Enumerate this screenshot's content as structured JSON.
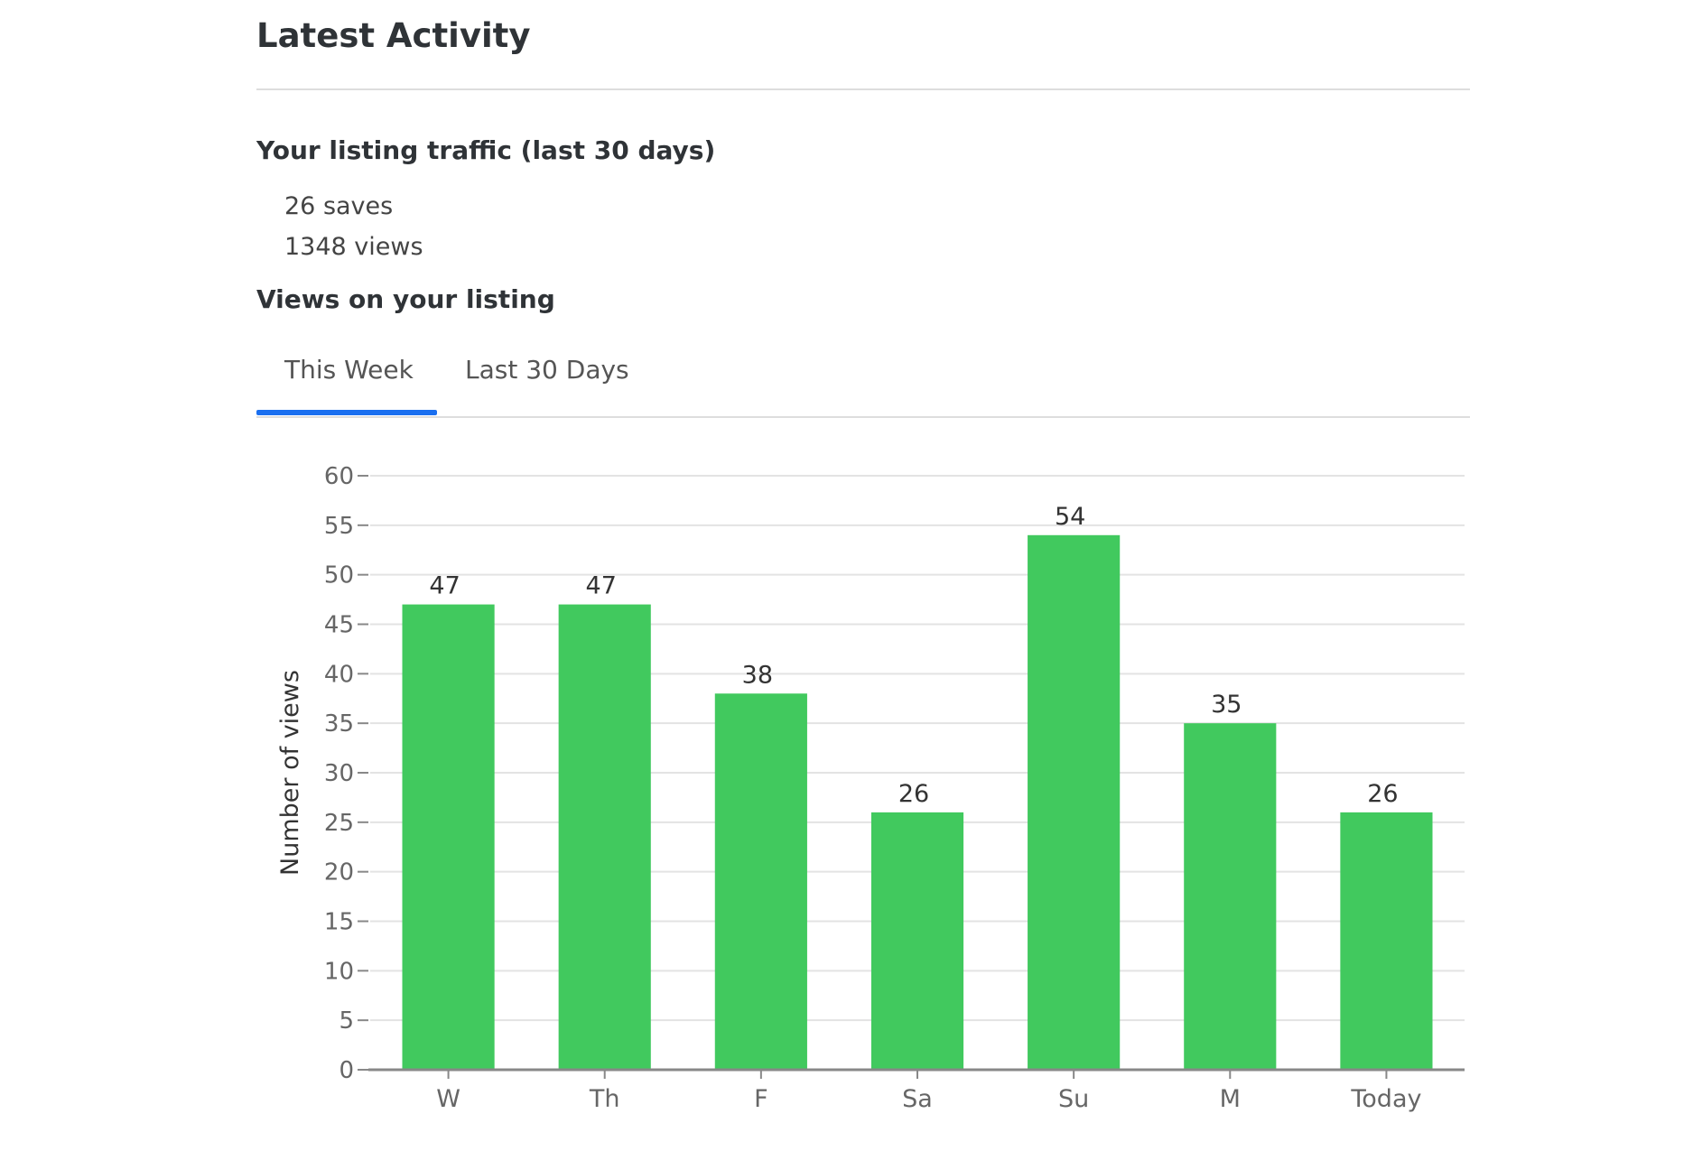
{
  "page": {
    "title": "Latest Activity"
  },
  "traffic": {
    "heading": "Your listing traffic (last 30 days)",
    "saves": "26 saves",
    "views": "1348 views"
  },
  "views_section": {
    "heading": "Views on your listing"
  },
  "tabs": [
    {
      "label": "This Week",
      "active": true
    },
    {
      "label": "Last 30 Days",
      "active": false
    }
  ],
  "colors": {
    "bar": "#41c95e",
    "tab_active": "#1a6ff0"
  },
  "chart_data": {
    "type": "bar",
    "categories": [
      "W",
      "Th",
      "F",
      "Sa",
      "Su",
      "M",
      "Today"
    ],
    "values": [
      47,
      47,
      38,
      26,
      54,
      35,
      26
    ],
    "ylabel": "Number of views",
    "xlabel": "",
    "ylim": [
      0,
      60
    ],
    "yticks": [
      0,
      5,
      10,
      15,
      20,
      25,
      30,
      35,
      40,
      45,
      50,
      55,
      60
    ],
    "grid": true,
    "data_labels": true
  }
}
